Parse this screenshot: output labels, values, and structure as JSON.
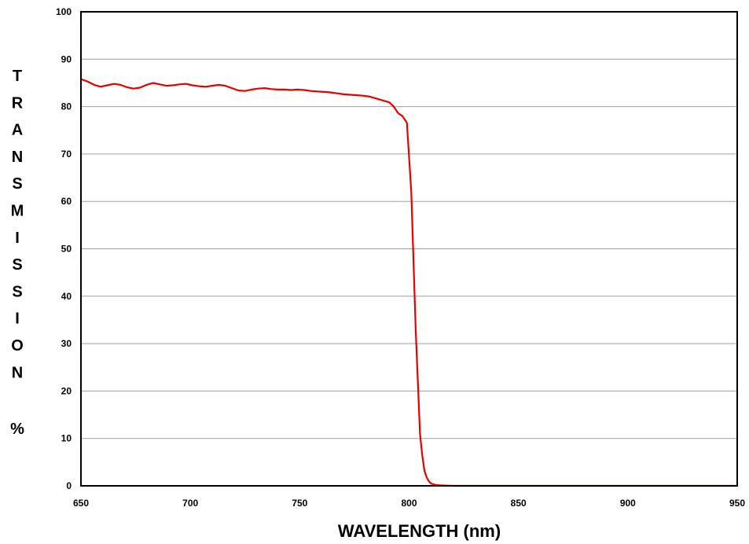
{
  "chart_data": {
    "type": "line",
    "title": "",
    "xlabel": "WAVELENGTH (nm)",
    "ylabel": "TRANSMISSION",
    "ylabel_unit": "%",
    "xlim": [
      650,
      950
    ],
    "ylim": [
      0,
      100
    ],
    "x_ticks": [
      650,
      700,
      750,
      800,
      850,
      900,
      950
    ],
    "y_ticks": [
      0,
      10,
      20,
      30,
      40,
      50,
      60,
      70,
      80,
      90,
      100
    ],
    "grid": "horizontal",
    "legend": "none",
    "series": [
      {
        "color": "#e60000",
        "x": [
          650,
          653,
          656,
          659,
          662,
          665,
          668,
          671,
          674,
          677,
          680,
          683,
          686,
          689,
          692,
          695,
          698,
          701,
          704,
          707,
          710,
          713,
          716,
          719,
          722,
          725,
          728,
          731,
          734,
          737,
          740,
          743,
          746,
          749,
          752,
          755,
          758,
          761,
          764,
          767,
          770,
          773,
          776,
          779,
          782,
          785,
          788,
          791,
          793,
          795,
          797,
          799,
          801,
          803,
          805,
          806,
          807,
          808,
          809,
          810,
          812,
          814,
          817,
          820,
          830,
          850,
          900,
          950
        ],
        "y": [
          85.8,
          85.3,
          84.6,
          84.2,
          84.5,
          84.8,
          84.6,
          84.1,
          83.8,
          84.0,
          84.6,
          85.0,
          84.7,
          84.4,
          84.5,
          84.7,
          84.8,
          84.5,
          84.3,
          84.2,
          84.4,
          84.6,
          84.4,
          83.9,
          83.4,
          83.3,
          83.6,
          83.8,
          83.9,
          83.7,
          83.6,
          83.6,
          83.5,
          83.6,
          83.5,
          83.3,
          83.2,
          83.1,
          83.0,
          82.8,
          82.6,
          82.5,
          82.4,
          82.3,
          82.1,
          81.7,
          81.3,
          80.9,
          80.0,
          78.6,
          78.0,
          76.6,
          62.0,
          33.0,
          11.0,
          6.5,
          3.2,
          1.8,
          1.0,
          0.5,
          0.2,
          0.1,
          0.05,
          0.0,
          0.0,
          0.0,
          0.0,
          0.0
        ]
      }
    ]
  }
}
